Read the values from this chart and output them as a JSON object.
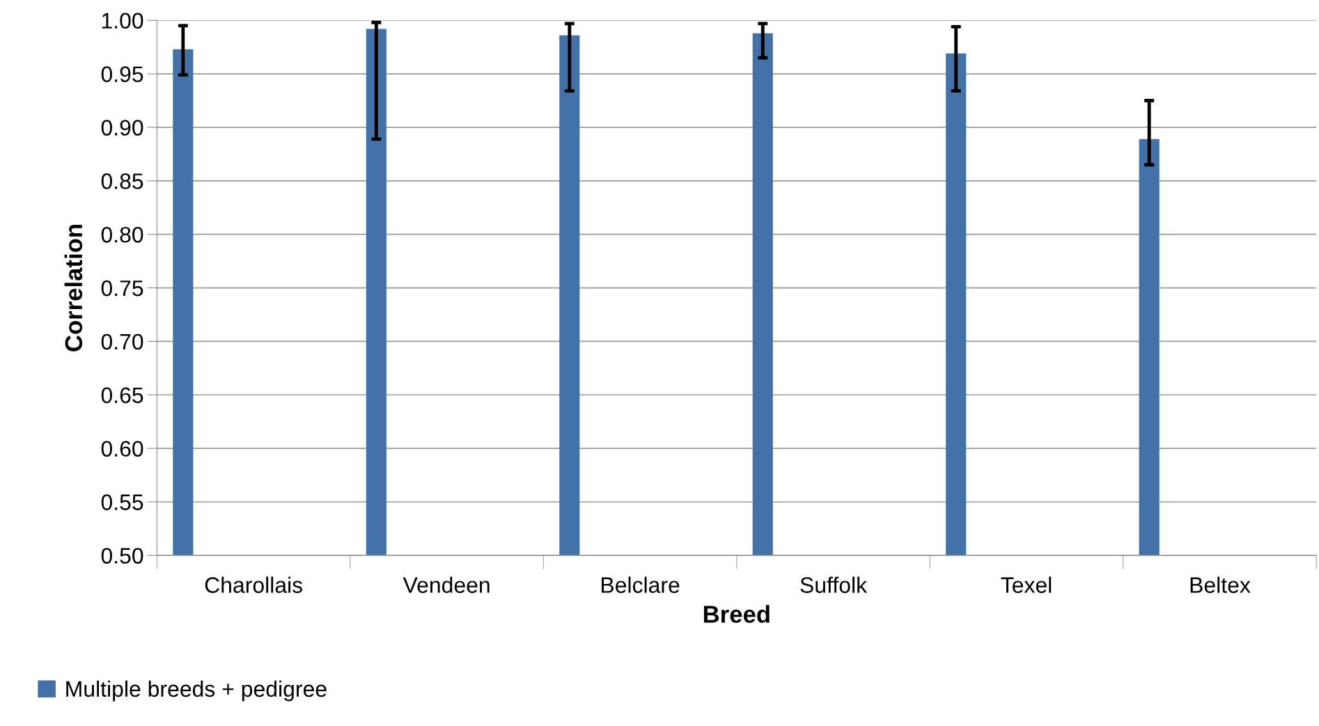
{
  "chart_data": {
    "type": "bar",
    "xlabel": "Breed",
    "ylabel": "Correlation",
    "categories": [
      "Charollais",
      "Vendeen",
      "Belclare",
      "Suffolk",
      "Texel",
      "Beltex"
    ],
    "series": [
      {
        "name": "Multiple breeds + pedigree",
        "color": "#4472a8",
        "values": [
          0.973,
          0.992,
          0.986,
          0.988,
          0.969,
          0.889
        ],
        "errors": [
          [
            0.949,
            0.995
          ],
          [
            0.889,
            0.998
          ],
          [
            0.934,
            0.997
          ],
          [
            0.965,
            0.997
          ],
          [
            0.934,
            0.994
          ],
          [
            0.865,
            0.925
          ]
        ]
      }
    ],
    "ylim": [
      0.5,
      1.0
    ],
    "yticks": [
      {
        "value": 0.5,
        "label": "0.50"
      },
      {
        "value": 0.55,
        "label": "0.55"
      },
      {
        "value": 0.6,
        "label": "0.60"
      },
      {
        "value": 0.65,
        "label": "0.65"
      },
      {
        "value": 0.7,
        "label": "0.70"
      },
      {
        "value": 0.75,
        "label": "0.75"
      },
      {
        "value": 0.8,
        "label": "0.80"
      },
      {
        "value": 0.85,
        "label": "0.85"
      },
      {
        "value": 0.9,
        "label": "0.90"
      },
      {
        "value": 0.95,
        "label": "0.95"
      },
      {
        "value": 1.0,
        "label": "1.00"
      }
    ],
    "grid": "y",
    "legend": "bottom left"
  }
}
